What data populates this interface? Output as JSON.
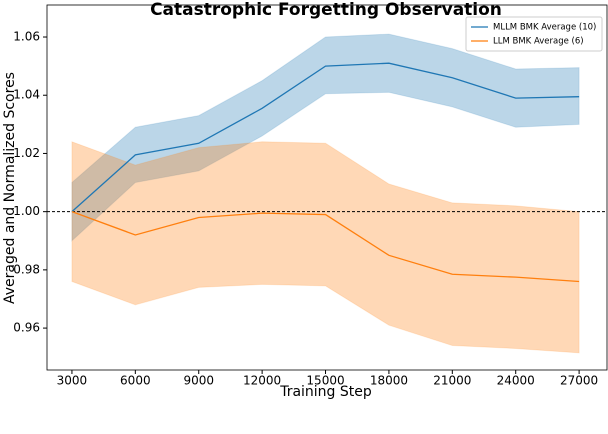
{
  "chart_data": {
    "type": "line",
    "title": "Catastrophic Forgetting Observation",
    "xlabel": "Training Step",
    "ylabel": "Averaged and Normalized Scores",
    "x": [
      3000,
      6000,
      9000,
      12000,
      15000,
      18000,
      21000,
      24000,
      27000
    ],
    "series": [
      {
        "name": "MLLM BMK Average (10)",
        "color": "#1f77b4",
        "values": [
          1.0,
          1.0195,
          1.0235,
          1.0355,
          1.05,
          1.051,
          1.046,
          1.039,
          1.0395
        ],
        "upper": [
          1.01,
          1.029,
          1.033,
          1.045,
          1.06,
          1.061,
          1.056,
          1.049,
          1.0495
        ],
        "lower": [
          0.99,
          1.01,
          1.014,
          1.026,
          1.0405,
          1.041,
          1.036,
          1.029,
          1.03
        ]
      },
      {
        "name": "LLM BMK Average (6)",
        "color": "#ff7f0e",
        "values": [
          1.0,
          0.992,
          0.998,
          0.9995,
          0.999,
          0.985,
          0.9785,
          0.9775,
          0.976
        ],
        "upper": [
          1.024,
          1.016,
          1.022,
          1.024,
          1.0235,
          1.0095,
          1.003,
          1.002,
          1.0
        ],
        "lower": [
          0.976,
          0.968,
          0.974,
          0.975,
          0.9745,
          0.961,
          0.954,
          0.953,
          0.9515
        ]
      }
    ],
    "hline": 1.0,
    "xlim": [
      1820,
      28320
    ],
    "ylim": [
      0.9456,
      1.071
    ],
    "xticks": [
      3000,
      6000,
      9000,
      12000,
      15000,
      18000,
      21000,
      24000,
      27000
    ],
    "yticks": [
      0.96,
      0.98,
      1.0,
      1.02,
      1.04,
      1.06
    ],
    "legend": "upper right"
  }
}
